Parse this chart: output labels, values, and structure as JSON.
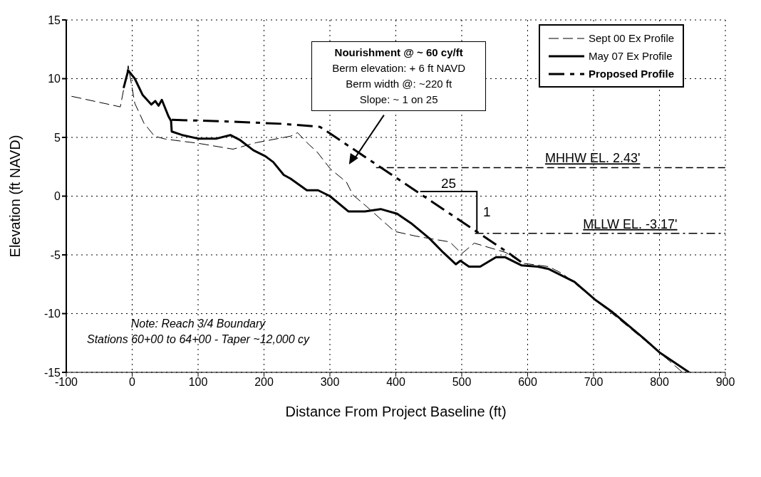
{
  "chart_data": {
    "type": "line",
    "xlabel": "Distance From Project Baseline (ft)",
    "ylabel": "Elevation (ft NAVD)",
    "xlim": [
      -100,
      900
    ],
    "xticks": [
      -100,
      0,
      100,
      200,
      300,
      400,
      500,
      600,
      700,
      800,
      900
    ],
    "ylim": [
      -15,
      15
    ],
    "yticks": [
      -15,
      -10,
      -5,
      0,
      5,
      10,
      15
    ],
    "grid": true,
    "legend": "top right",
    "marker": "none",
    "series": [
      {
        "name": "Sept 00 Ex Profile",
        "color": "#000000",
        "line_style": "dashed",
        "x": [
          -92,
          -18,
          -6,
          4,
          18,
          34,
          51,
          100,
          153,
          188,
          240,
          251,
          268,
          280,
          301,
          325,
          335,
          354,
          398,
          430,
          482,
          500,
          519,
          567,
          591,
          632,
          653,
          700,
          800,
          835
        ],
        "values": [
          8.5,
          7.6,
          11.1,
          7.9,
          6.2,
          5.1,
          4.85,
          4.5,
          4.0,
          4.55,
          5.1,
          5.4,
          4.4,
          3.8,
          2.3,
          1.2,
          0.1,
          -0.8,
          -3.0,
          -3.4,
          -3.9,
          -4.9,
          -4.0,
          -4.8,
          -5.7,
          -6.0,
          -6.6,
          -8.7,
          -13.3,
          -15
        ]
      },
      {
        "name": "May 07 Ex Profile",
        "color": "#000000",
        "line_style": "solid",
        "x": [
          -13,
          -6,
          4,
          16,
          29,
          35,
          40,
          45,
          55,
          59,
          60,
          76,
          100,
          128,
          149,
          163,
          184,
          202,
          214,
          230,
          240,
          265,
          282,
          300,
          328,
          353,
          377,
          402,
          423,
          451,
          472,
          491,
          498,
          511,
          528,
          552,
          566,
          591,
          615,
          632,
          671,
          702,
          727,
          776,
          800,
          845
        ],
        "values": [
          9.2,
          10.7,
          10.0,
          8.6,
          7.8,
          8.1,
          7.7,
          8.2,
          6.8,
          6.4,
          5.5,
          5.2,
          4.9,
          4.9,
          5.2,
          4.8,
          3.9,
          3.4,
          2.9,
          1.8,
          1.5,
          0.5,
          0.5,
          0.0,
          -1.3,
          -1.3,
          -1.1,
          -1.5,
          -2.3,
          -3.6,
          -4.8,
          -5.8,
          -5.5,
          -6.0,
          -6.0,
          -5.2,
          -5.2,
          -5.9,
          -6.0,
          -6.2,
          -7.3,
          -8.8,
          -9.8,
          -12.1,
          -13.3,
          -15
        ]
      },
      {
        "name": "Proposed Profile",
        "color": "#000000",
        "line_style": "dashed",
        "x": [
          60,
          150,
          230,
          285,
          570,
          590
        ],
        "values": [
          6.5,
          6.35,
          6.15,
          5.9,
          -4.8,
          -5.6
        ]
      }
    ],
    "ref_lines": [
      {
        "axis": "y",
        "value": 2.43,
        "label": "MHHW EL. 2.43'",
        "color": "#000000",
        "line_style": "dashed"
      },
      {
        "axis": "y",
        "value": -3.17,
        "label": "MLLW EL. -3.17'",
        "color": "#000000",
        "line_style": "dashed"
      }
    ],
    "annotations": [
      "Nourishment @ ~ 60 cy/ft",
      "Berm elevation:  + 6 ft NAVD",
      "Berm width @:  ~220 ft",
      "Slope:  ~ 1 on 25",
      "Note:  Reach 3/4  Boundary",
      "Stations 60+00 to 64+00 - Taper ~12,000 cy",
      "25",
      {
        "text": "1",
        "x": 523,
        "y": -3.05
      }
    ]
  }
}
